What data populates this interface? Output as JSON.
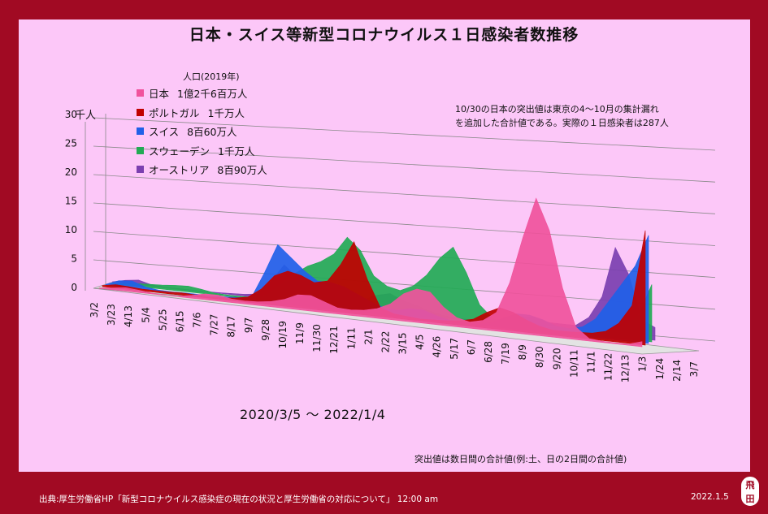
{
  "title": "日本・スイス等新型コロナウイルス１日感染者数推移",
  "legend_header": "人口(2019年)",
  "note_lines": [
    "10/30の日本の突出値は東京の4～10月の集計漏れ",
    "を追加した合計値である。実際の１日感染者は287人"
  ],
  "date_range": "2020/3/5 〜 2022/1/4",
  "peak_note": "突出値は数日間の合計値(例:土、日の2日間の合計値)",
  "source": "出典:厚生労働省HP「新型コロナウイルス感染症の現在の状況と厚生労働省の対応について」 12:00 am",
  "footer_date": "2022.1.5",
  "seal_text": [
    "飛",
    "田"
  ],
  "colors": {
    "background": "#a10a23",
    "plot_panel": "#fcc7f8"
  },
  "chart_data": {
    "type": "area",
    "view": "3d-perspective",
    "ylabel": "千人",
    "ylim": [
      0,
      30
    ],
    "yticks": [
      "0",
      "5",
      "10",
      "15",
      "20",
      "25",
      "30"
    ],
    "xticks": [
      "3/2",
      "3/23",
      "4/13",
      "5/4",
      "5/25",
      "6/15",
      "7/6",
      "7/27",
      "8/17",
      "9/7",
      "9/28",
      "10/19",
      "11/9",
      "11/30",
      "12/21",
      "1/11",
      "2/1",
      "2/22",
      "3/15",
      "4/5",
      "4/26",
      "5/17",
      "6/7",
      "6/28",
      "7/19",
      "8/9",
      "8/30",
      "9/20",
      "10/11",
      "11/1",
      "11/22",
      "12/13",
      "1/3",
      "1/24",
      "2/14",
      "3/7"
    ],
    "grid": true,
    "legend_placement": "top-left",
    "series": [
      {
        "name": "日本",
        "population": "1億2千6百万人",
        "color": "#f0529c",
        "values": [
          0.05,
          0.3,
          0.6,
          0.4,
          0.15,
          0.05,
          0.1,
          0.5,
          1.0,
          1.0,
          0.6,
          0.5,
          0.6,
          0.9,
          1.5,
          2.5,
          2.6,
          1.8,
          1.0,
          0.9,
          1.1,
          1.6,
          2.6,
          4.5,
          5.5,
          5.2,
          3.0,
          1.5,
          1.0,
          1.5,
          3.0,
          8.0,
          15.5,
          22.0,
          17.0,
          8.0,
          2.0,
          0.4,
          0.2,
          0.15,
          0.2,
          0.8
        ]
      },
      {
        "name": "ポルトガル",
        "population": "1千万人",
        "color": "#c00000",
        "values": [
          0.2,
          0.6,
          0.5,
          0.3,
          0.3,
          0.3,
          0.4,
          0.3,
          0.2,
          0.3,
          0.5,
          0.9,
          2.5,
          5.0,
          6.0,
          5.5,
          4.5,
          5.0,
          8.0,
          12.0,
          6.0,
          1.5,
          0.7,
          0.5,
          0.3,
          0.4,
          0.5,
          0.7,
          1.2,
          2.5,
          3.5,
          3.0,
          2.0,
          1.2,
          0.8,
          0.8,
          0.9,
          1.0,
          1.5,
          3.0,
          6.0,
          18.0
        ]
      },
      {
        "name": "スイス",
        "population": "8百60万人",
        "color": "#2060e8",
        "values": [
          0.1,
          1.0,
          1.2,
          0.4,
          0.1,
          0.05,
          0.1,
          0.1,
          0.1,
          0.2,
          0.3,
          0.5,
          5.0,
          10.0,
          8.0,
          6.0,
          4.5,
          4.5,
          4.0,
          3.0,
          2.0,
          1.2,
          1.0,
          1.5,
          1.5,
          0.8,
          0.3,
          0.2,
          0.2,
          0.5,
          1.5,
          2.5,
          2.5,
          2.0,
          1.2,
          1.0,
          1.5,
          3.0,
          6.0,
          9.0,
          12.0,
          17.0
        ]
      },
      {
        "name": "スウェーデン",
        "population": "1千万人",
        "color": "#22aa55",
        "values": [
          0.0,
          0.2,
          0.5,
          0.6,
          0.7,
          0.9,
          1.0,
          0.7,
          0.3,
          0.2,
          0.2,
          0.3,
          1.0,
          3.0,
          5.0,
          6.5,
          7.5,
          9.0,
          12.0,
          10.0,
          6.0,
          4.5,
          4.0,
          5.0,
          7.0,
          10.0,
          12.0,
          8.0,
          3.0,
          1.0,
          0.3,
          0.2,
          0.3,
          0.5,
          0.8,
          0.6,
          0.5,
          0.7,
          1.2,
          2.0,
          4.0,
          9.0
        ]
      },
      {
        "name": "オーストリア",
        "population": "8百90万人",
        "color": "#7b3fb0",
        "values": [
          0.0,
          0.5,
          0.8,
          0.2,
          0.05,
          0.05,
          0.05,
          0.05,
          0.1,
          0.2,
          0.3,
          0.6,
          3.0,
          6.0,
          4.0,
          2.5,
          2.0,
          1.8,
          1.5,
          1.5,
          2.5,
          3.0,
          2.0,
          1.5,
          0.8,
          0.3,
          0.1,
          0.1,
          0.2,
          0.5,
          1.0,
          1.5,
          1.5,
          1.0,
          1.0,
          1.0,
          2.5,
          6.0,
          14.0,
          10.0,
          3.0,
          2.0
        ]
      }
    ]
  }
}
